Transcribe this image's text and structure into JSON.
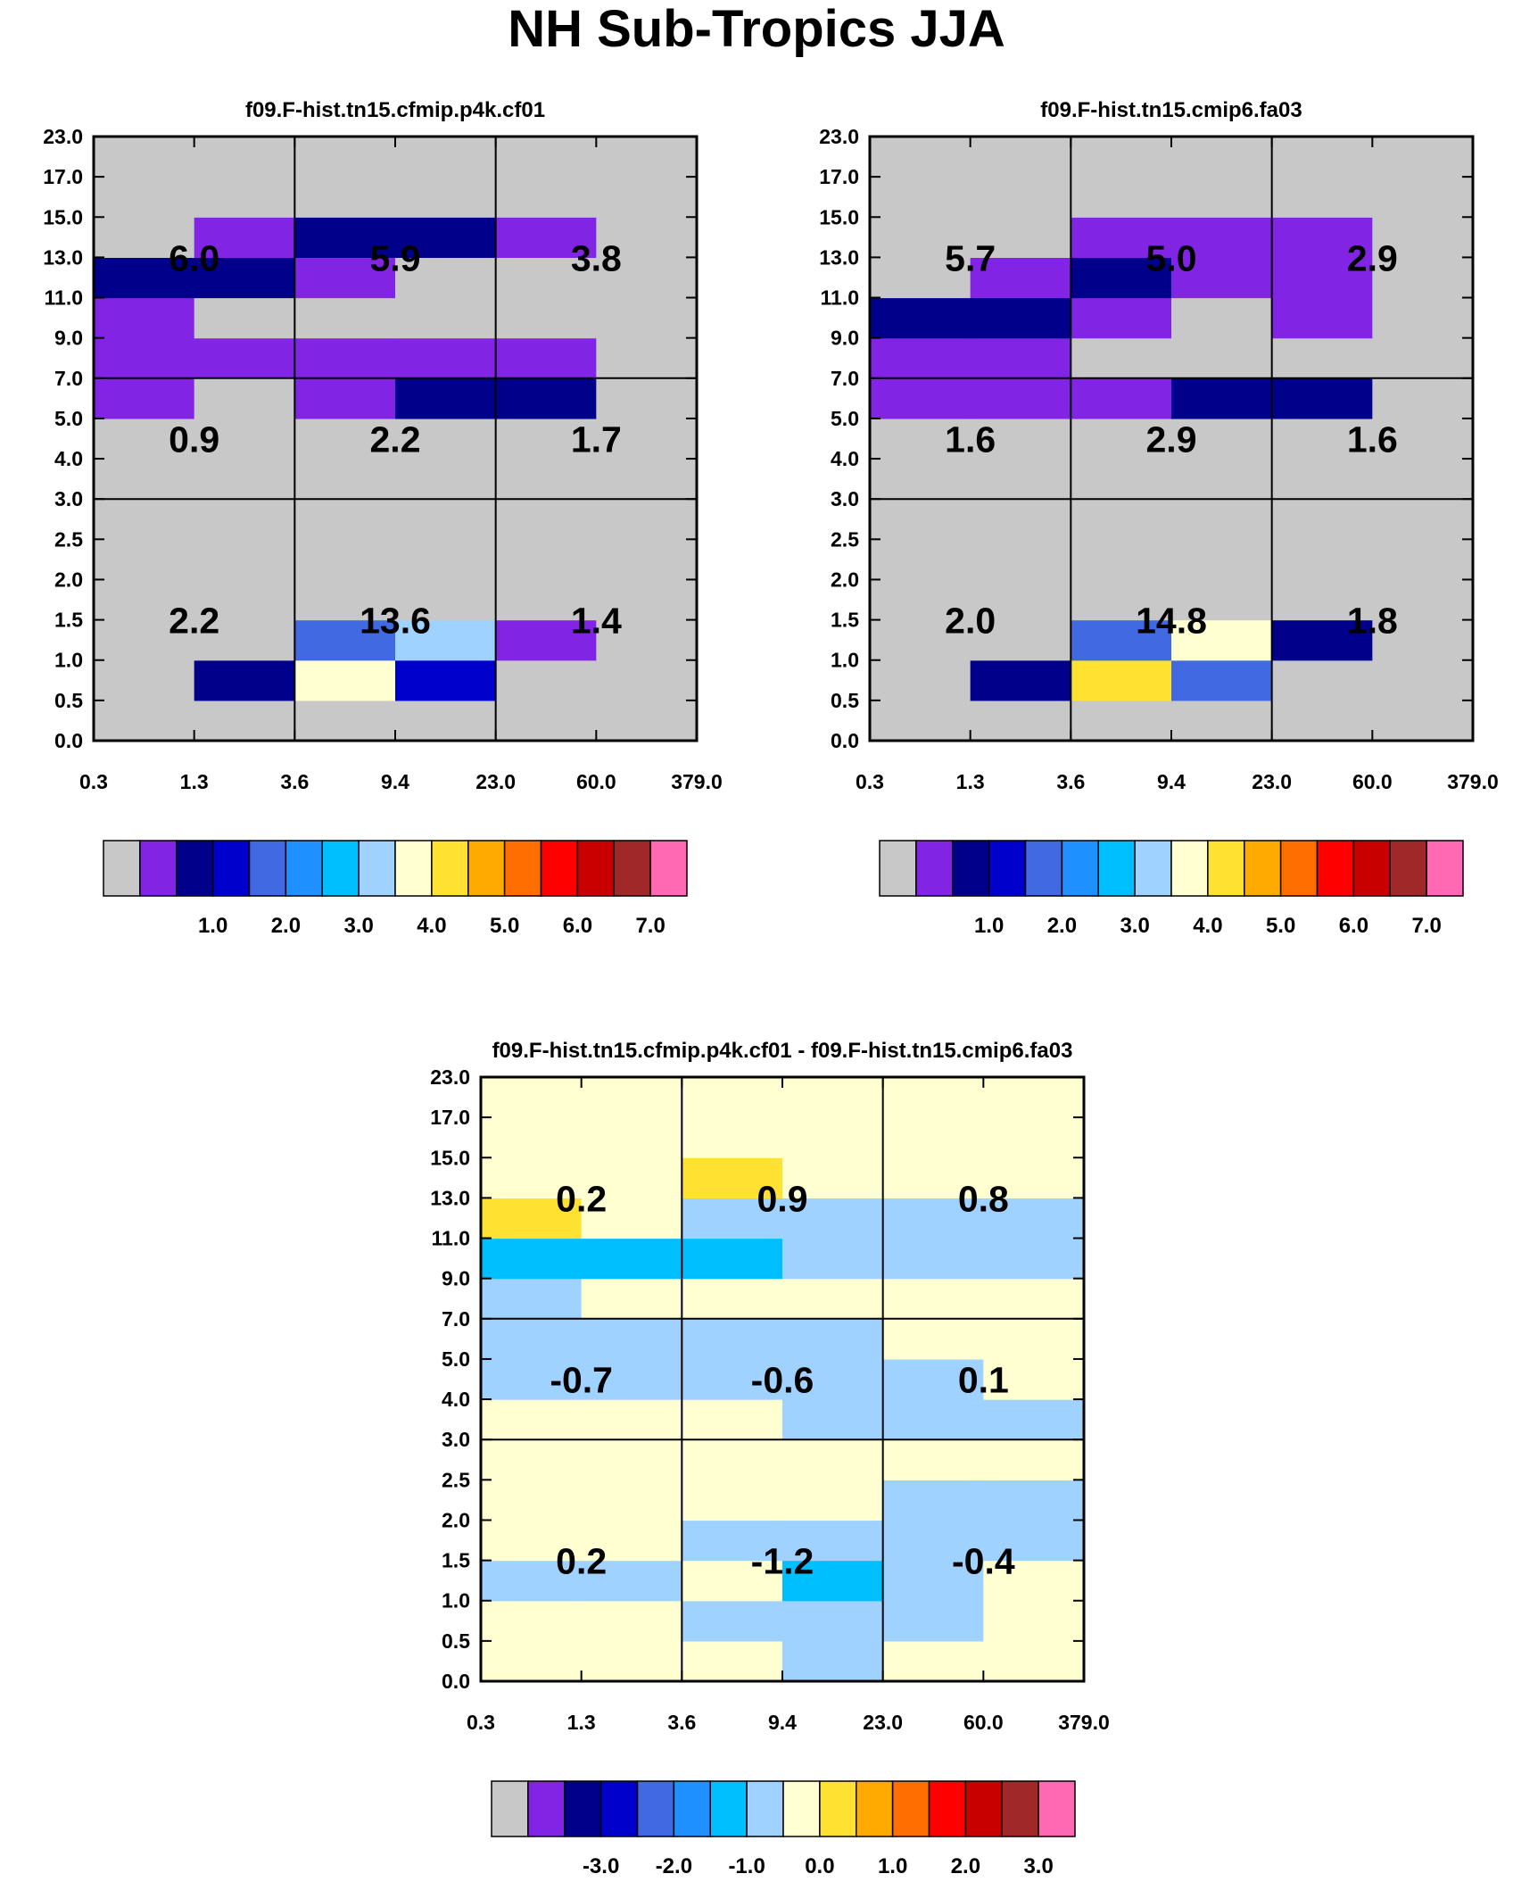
{
  "title": "NH Sub-Tropics JJA",
  "colorbar_palette": [
    "#c8c8c8",
    "#8224e3",
    "#00008b",
    "#0000cd",
    "#4169e1",
    "#1e90ff",
    "#00bfff",
    "#a0d2ff",
    "#ffffd2",
    "#ffe131",
    "#ffaa00",
    "#ff6e00",
    "#ff0000",
    "#c80000",
    "#a02828",
    "#ff69b4"
  ],
  "chart_data": [
    {
      "type": "heatmap",
      "title": "f09.F-hist.tn15.cfmip.p4k.cf01",
      "x_ticks": [
        "0.3",
        "1.3",
        "3.6",
        "9.4",
        "23.0",
        "60.0",
        "379.0"
      ],
      "y_ticks": [
        "0.0",
        "0.5",
        "1.0",
        "1.5",
        "2.0",
        "2.5",
        "3.0",
        "4.0",
        "5.0",
        "7.0",
        "9.0",
        "11.0",
        "13.0",
        "15.0",
        "17.0",
        "23.0"
      ],
      "grid": {
        "x_bins": [
          0,
          2,
          4,
          6
        ],
        "y_bins": [
          0,
          6,
          9,
          15
        ]
      },
      "values": [
        [
          0,
          0,
          0,
          0,
          0,
          0
        ],
        [
          0,
          2,
          8,
          3,
          0,
          0
        ],
        [
          0,
          0,
          4,
          7,
          1,
          0
        ],
        [
          0,
          0,
          0,
          0,
          0,
          0
        ],
        [
          0,
          0,
          0,
          0,
          0,
          0
        ],
        [
          0,
          0,
          0,
          0,
          0,
          0
        ],
        [
          0,
          0,
          0,
          0,
          0,
          0
        ],
        [
          0,
          0,
          0,
          0,
          0,
          0
        ],
        [
          1,
          0,
          1,
          2,
          2,
          0
        ],
        [
          1,
          1,
          1,
          1,
          1,
          0
        ],
        [
          1,
          0,
          0,
          0,
          0,
          0
        ],
        [
          2,
          2,
          1,
          0,
          0,
          0
        ],
        [
          0,
          1,
          2,
          2,
          1,
          0
        ],
        [
          0,
          0,
          0,
          0,
          0,
          0
        ],
        [
          0,
          0,
          0,
          0,
          0,
          0
        ]
      ],
      "box_labels": [
        {
          "col": 0,
          "row": 0,
          "text": "2.2"
        },
        {
          "col": 1,
          "row": 0,
          "text": "13.6"
        },
        {
          "col": 2,
          "row": 0,
          "text": "1.4"
        },
        {
          "col": 0,
          "row": 1,
          "text": "0.9"
        },
        {
          "col": 1,
          "row": 1,
          "text": "2.2"
        },
        {
          "col": 2,
          "row": 1,
          "text": "1.7"
        },
        {
          "col": 0,
          "row": 2,
          "text": "6.0"
        },
        {
          "col": 1,
          "row": 2,
          "text": "5.9"
        },
        {
          "col": 2,
          "row": 2,
          "text": "3.8"
        }
      ],
      "colorbar": {
        "labels": [
          "1.0",
          "2.0",
          "3.0",
          "4.0",
          "5.0",
          "6.0",
          "7.0"
        ],
        "n_boxes": 16
      }
    },
    {
      "type": "heatmap",
      "title": "f09.F-hist.tn15.cmip6.fa03",
      "x_ticks": [
        "0.3",
        "1.3",
        "3.6",
        "9.4",
        "23.0",
        "60.0",
        "379.0"
      ],
      "y_ticks": [
        "0.0",
        "0.5",
        "1.0",
        "1.5",
        "2.0",
        "2.5",
        "3.0",
        "4.0",
        "5.0",
        "7.0",
        "9.0",
        "11.0",
        "13.0",
        "15.0",
        "17.0",
        "23.0"
      ],
      "grid": {
        "x_bins": [
          0,
          2,
          4,
          6
        ],
        "y_bins": [
          0,
          6,
          9,
          15
        ]
      },
      "values": [
        [
          0,
          0,
          0,
          0,
          0,
          0
        ],
        [
          0,
          2,
          9,
          4,
          0,
          0
        ],
        [
          0,
          0,
          4,
          8,
          2,
          0
        ],
        [
          0,
          0,
          0,
          0,
          0,
          0
        ],
        [
          0,
          0,
          0,
          0,
          0,
          0
        ],
        [
          0,
          0,
          0,
          0,
          0,
          0
        ],
        [
          0,
          0,
          0,
          0,
          0,
          0
        ],
        [
          0,
          0,
          0,
          0,
          0,
          0
        ],
        [
          1,
          1,
          1,
          2,
          2,
          0
        ],
        [
          1,
          1,
          0,
          0,
          0,
          0
        ],
        [
          2,
          2,
          1,
          0,
          1,
          0
        ],
        [
          0,
          1,
          2,
          1,
          1,
          0
        ],
        [
          0,
          0,
          1,
          1,
          1,
          0
        ],
        [
          0,
          0,
          0,
          0,
          0,
          0
        ],
        [
          0,
          0,
          0,
          0,
          0,
          0
        ]
      ],
      "box_labels": [
        {
          "col": 0,
          "row": 0,
          "text": "2.0"
        },
        {
          "col": 1,
          "row": 0,
          "text": "14.8"
        },
        {
          "col": 2,
          "row": 0,
          "text": "1.8"
        },
        {
          "col": 0,
          "row": 1,
          "text": "1.6"
        },
        {
          "col": 1,
          "row": 1,
          "text": "2.9"
        },
        {
          "col": 2,
          "row": 1,
          "text": "1.6"
        },
        {
          "col": 0,
          "row": 2,
          "text": "5.7"
        },
        {
          "col": 1,
          "row": 2,
          "text": "5.0"
        },
        {
          "col": 2,
          "row": 2,
          "text": "2.9"
        }
      ],
      "colorbar": {
        "labels": [
          "1.0",
          "2.0",
          "3.0",
          "4.0",
          "5.0",
          "6.0",
          "7.0"
        ],
        "n_boxes": 16
      }
    },
    {
      "type": "heatmap",
      "title": "f09.F-hist.tn15.cfmip.p4k.cf01 - f09.F-hist.tn15.cmip6.fa03",
      "x_ticks": [
        "0.3",
        "1.3",
        "3.6",
        "9.4",
        "23.0",
        "60.0",
        "379.0"
      ],
      "y_ticks": [
        "0.0",
        "0.5",
        "1.0",
        "1.5",
        "2.0",
        "2.5",
        "3.0",
        "4.0",
        "5.0",
        "7.0",
        "9.0",
        "11.0",
        "13.0",
        "15.0",
        "17.0",
        "23.0"
      ],
      "grid": {
        "x_bins": [
          0,
          2,
          4,
          6
        ],
        "y_bins": [
          0,
          6,
          9,
          15
        ]
      },
      "values": [
        [
          8,
          8,
          8,
          7,
          8,
          8
        ],
        [
          8,
          8,
          7,
          7,
          7,
          8
        ],
        [
          7,
          7,
          8,
          6,
          7,
          8
        ],
        [
          8,
          8,
          7,
          7,
          7,
          7
        ],
        [
          8,
          8,
          8,
          8,
          7,
          7
        ],
        [
          8,
          8,
          8,
          8,
          8,
          8
        ],
        [
          8,
          8,
          8,
          7,
          7,
          7
        ],
        [
          7,
          7,
          7,
          7,
          7,
          8
        ],
        [
          7,
          7,
          7,
          7,
          8,
          8
        ],
        [
          7,
          8,
          8,
          8,
          8,
          8
        ],
        [
          6,
          6,
          6,
          7,
          7,
          7
        ],
        [
          9,
          8,
          7,
          7,
          7,
          7
        ],
        [
          8,
          8,
          9,
          8,
          8,
          8
        ],
        [
          8,
          8,
          8,
          8,
          8,
          8
        ],
        [
          8,
          8,
          8,
          8,
          8,
          8
        ]
      ],
      "box_labels": [
        {
          "col": 0,
          "row": 0,
          "text": "0.2"
        },
        {
          "col": 1,
          "row": 0,
          "text": "-1.2"
        },
        {
          "col": 2,
          "row": 0,
          "text": "-0.4"
        },
        {
          "col": 0,
          "row": 1,
          "text": "-0.7"
        },
        {
          "col": 1,
          "row": 1,
          "text": "-0.6"
        },
        {
          "col": 2,
          "row": 1,
          "text": "0.1"
        },
        {
          "col": 0,
          "row": 2,
          "text": "0.2"
        },
        {
          "col": 1,
          "row": 2,
          "text": "0.9"
        },
        {
          "col": 2,
          "row": 2,
          "text": "0.8"
        }
      ],
      "colorbar": {
        "labels": [
          "-3.0",
          "-2.0",
          "-1.0",
          "0.0",
          "1.0",
          "2.0",
          "3.0"
        ],
        "n_boxes": 16
      }
    }
  ]
}
